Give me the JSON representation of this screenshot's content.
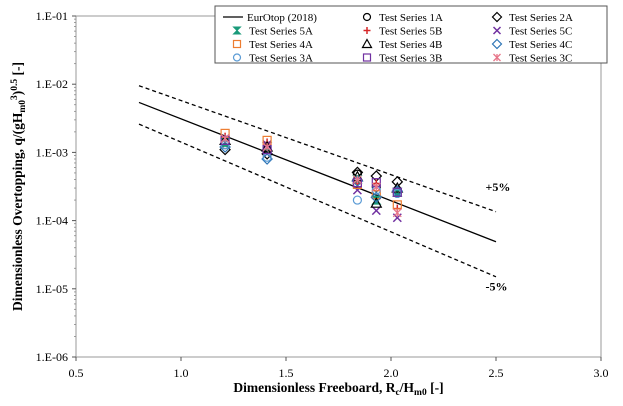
{
  "chart_data": {
    "type": "scatter",
    "xlabel": "Dimensionless Freeboard, R_c/H_m0 [-]",
    "xlabel_parts": {
      "main": "Dimensionless Freeboard, R",
      "sub1": "c",
      "mid": "/H",
      "sub2": "m0",
      "tail": " [-]"
    },
    "ylabel": "Dimensionless Overtopping, q/(gH_m0^3)^0.5 [-]",
    "ylabel_parts": {
      "main": "Dimensionless Overtopping, q/(gH",
      "sub": "m0",
      "sup1": "3",
      "mid": ")",
      "sup2": "0.5",
      "tail": " [-]"
    },
    "xlim": [
      0.5,
      3.0
    ],
    "ylim": [
      1e-06,
      0.1
    ],
    "yscale": "log",
    "x_ticks": [
      0.5,
      1.0,
      1.5,
      2.0,
      2.5,
      3.0
    ],
    "x_tick_labels": [
      "0.5",
      "1.0",
      "1.5",
      "2.0",
      "2.5",
      "3.0"
    ],
    "y_ticks": [
      1e-06,
      1e-05,
      0.0001,
      0.001,
      0.01,
      0.1
    ],
    "y_tick_labels": [
      "1.E-06",
      "1.E-05",
      "1.E-04",
      "1.E-03",
      "1.E-02",
      "1.E-01"
    ],
    "grid": false,
    "legend_position": "top-right",
    "lines": [
      {
        "name": "EurOtop (2018)",
        "style": "solid",
        "color": "#000000",
        "x": [
          0.8,
          2.5
        ],
        "y": [
          0.0054,
          4.9e-05
        ]
      },
      {
        "name": "",
        "style": "dashed",
        "color": "#000000",
        "x": [
          0.8,
          2.5
        ],
        "y": [
          0.0095,
          0.000135
        ]
      },
      {
        "name": "",
        "style": "dashed",
        "color": "#000000",
        "x": [
          0.8,
          2.5
        ],
        "y": [
          0.0026,
          1.5e-05
        ]
      }
    ],
    "annotations": [
      {
        "text": "+5%",
        "x": 2.45,
        "y": 0.00027
      },
      {
        "text": "-5%",
        "x": 2.45,
        "y": 9.5e-06
      }
    ],
    "series": [
      {
        "name": "Test Series 1A",
        "marker": "circle",
        "color": "#000000",
        "x": [
          1.21,
          1.41,
          1.84,
          1.93,
          2.03
        ],
        "y": [
          0.0013,
          0.0011,
          0.00048,
          0.00031,
          0.00028
        ]
      },
      {
        "name": "Test Series 2A",
        "marker": "diamond",
        "color": "#000000",
        "x": [
          1.21,
          1.41,
          1.84,
          1.93,
          2.03
        ],
        "y": [
          0.0011,
          0.00095,
          0.00051,
          0.00045,
          0.00037
        ]
      },
      {
        "name": "Test Series 5A",
        "marker": "hourglass",
        "color": "#1a9a7a",
        "x": [
          1.21,
          1.41,
          1.84,
          1.93,
          2.03
        ],
        "y": [
          0.0014,
          0.0012,
          0.0004,
          0.0002,
          0.00026
        ]
      },
      {
        "name": "Test Series 5B",
        "marker": "plus",
        "color": "#d62728",
        "x": [
          1.21,
          1.41,
          1.84,
          1.93,
          2.03
        ],
        "y": [
          0.0017,
          0.0014,
          0.00035,
          0.00035,
          0.00015
        ]
      },
      {
        "name": "Test Series 5C",
        "marker": "x",
        "color": "#7030a0",
        "x": [
          1.21,
          1.41,
          1.84,
          1.93,
          2.03
        ],
        "y": [
          0.0016,
          0.0013,
          0.00028,
          0.00014,
          0.00011
        ]
      },
      {
        "name": "Test Series 4A",
        "marker": "square",
        "color": "#ed7d31",
        "x": [
          1.21,
          1.41,
          1.84,
          1.93,
          2.03
        ],
        "y": [
          0.0019,
          0.0015,
          0.00034,
          0.00024,
          0.00017
        ]
      },
      {
        "name": "Test Series 4B",
        "marker": "triangle",
        "color": "#000000",
        "x": [
          1.21,
          1.41,
          1.84,
          1.93,
          2.03
        ],
        "y": [
          0.0015,
          0.0012,
          0.00044,
          0.00018,
          0.0003
        ]
      },
      {
        "name": "Test Series 4C",
        "marker": "diamond",
        "color": "#2e75b6",
        "x": [
          1.21,
          1.41,
          1.84,
          1.93,
          2.03
        ],
        "y": [
          0.0012,
          0.0008,
          0.00038,
          0.00022,
          0.00027
        ]
      },
      {
        "name": "Test Series 3A",
        "marker": "circle",
        "color": "#5b9bd5",
        "x": [
          1.21,
          1.41,
          1.84,
          1.93,
          2.03
        ],
        "y": [
          0.0013,
          0.00085,
          0.0002,
          0.00028,
          0.00025
        ]
      },
      {
        "name": "Test Series 3B",
        "marker": "square",
        "color": "#7030a0",
        "x": [
          1.21,
          1.41,
          1.84,
          1.93,
          2.03
        ],
        "y": [
          0.0015,
          0.0011,
          0.00036,
          0.00036,
          0.00026
        ]
      },
      {
        "name": "Test Series 3C",
        "marker": "asterisk",
        "color": "#e7768a",
        "x": [
          1.21,
          1.41,
          1.84,
          1.93,
          2.03
        ],
        "y": [
          0.0016,
          0.0012,
          0.0004,
          0.00031,
          0.00013
        ]
      }
    ],
    "legend_entries": [
      {
        "label": "EurOtop (2018)",
        "marker": "line",
        "color": "#000000"
      },
      {
        "label": "Test Series 1A",
        "marker": "circle",
        "color": "#000000"
      },
      {
        "label": "Test Series 2A",
        "marker": "diamond",
        "color": "#000000"
      },
      {
        "label": "Test Series 5A",
        "marker": "hourglass",
        "color": "#1a9a7a"
      },
      {
        "label": "Test Series 5B",
        "marker": "plus",
        "color": "#d62728"
      },
      {
        "label": "Test Series 5C",
        "marker": "x",
        "color": "#7030a0"
      },
      {
        "label": "Test Series 4A",
        "marker": "square",
        "color": "#ed7d31"
      },
      {
        "label": "Test Series 4B",
        "marker": "triangle",
        "color": "#000000"
      },
      {
        "label": "Test Series 4C",
        "marker": "diamond",
        "color": "#2e75b6"
      },
      {
        "label": "Test Series 3A",
        "marker": "circle",
        "color": "#5b9bd5"
      },
      {
        "label": "Test Series 3B",
        "marker": "square",
        "color": "#7030a0"
      },
      {
        "label": "Test Series 3C",
        "marker": "asterisk",
        "color": "#e7768a"
      }
    ]
  }
}
